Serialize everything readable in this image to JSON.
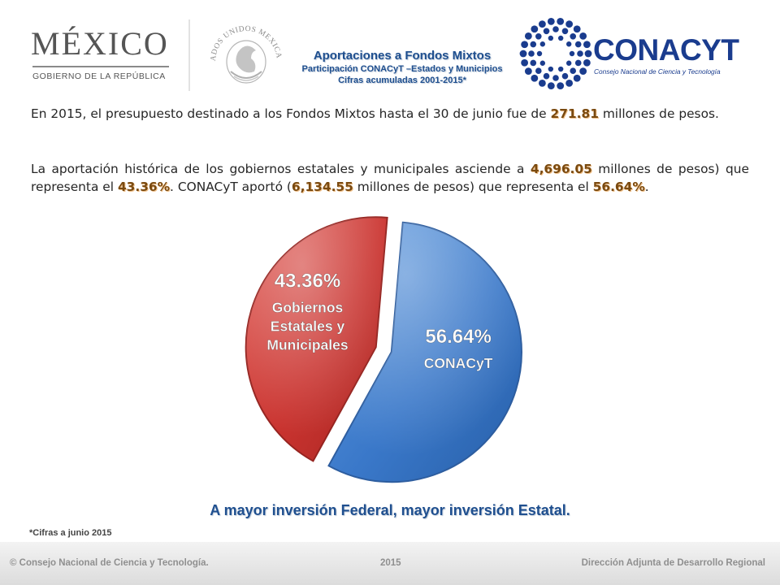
{
  "header": {
    "mexico_word": "MÉXICO",
    "mexico_sub": "GOBIERNO DE LA REPÚBLICA",
    "seal_text": "ESTADOS UNIDOS MEXICANOS",
    "title": "Aportaciones a Fondos Mixtos",
    "subtitle_1": "Participación CONACyT –Estados y Municipios",
    "subtitle_2": "Cifras acumuladas 2001-2015*",
    "conacyt_word": "CONACYT",
    "conacyt_tagline": "Consejo Nacional de Ciencia y Tecnología"
  },
  "paragraph_1": {
    "before": "En 2015, el presupuesto destinado a los Fondos Mixtos hasta el 30 de junio fue de ",
    "amount": "271.81",
    "after": " millones de pesos."
  },
  "paragraph_2": {
    "part_a": "La aportación histórica de los gobiernos estatales y municipales asciende a ",
    "amount_states": "4,696.05",
    "part_b": " millones de pesos) que representa el ",
    "pct_states": "43.36%",
    "part_c": ". CONACyT aportó (",
    "amount_conacyt": "6,134.55",
    "part_d": " millones de pesos) que representa el ",
    "pct_conacyt": "56.64%",
    "part_e": "."
  },
  "chart_data": {
    "type": "pie",
    "slices": [
      {
        "label_pct": "56.64%",
        "label": "CONACyT",
        "value": 56.64,
        "color": "#3a78c9"
      },
      {
        "label_pct": "43.36%",
        "label_lines": [
          "Gobiernos",
          "Estatales y",
          "Municipales"
        ],
        "value": 43.36,
        "color": "#c9332f",
        "exploded": true
      }
    ]
  },
  "bottom_message": "A mayor inversión Federal, mayor inversión Estatal.",
  "footnote": "*Cifras a junio 2015",
  "footer": {
    "left": "© Consejo Nacional de Ciencia y Tecnología.",
    "center": "2015",
    "right": "Dirección Adjunta de Desarrollo Regional"
  }
}
